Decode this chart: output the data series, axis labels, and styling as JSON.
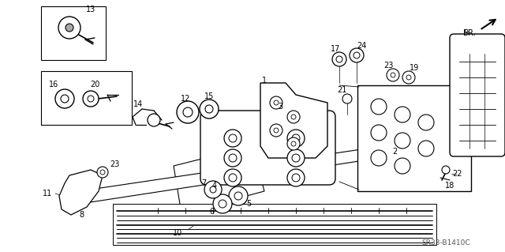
{
  "bg_color": "#ffffff",
  "diagram_code": "SR33-B1410C",
  "fr_label": "FR.",
  "font_size": 7,
  "lc": "#000000",
  "tc": "#000000"
}
